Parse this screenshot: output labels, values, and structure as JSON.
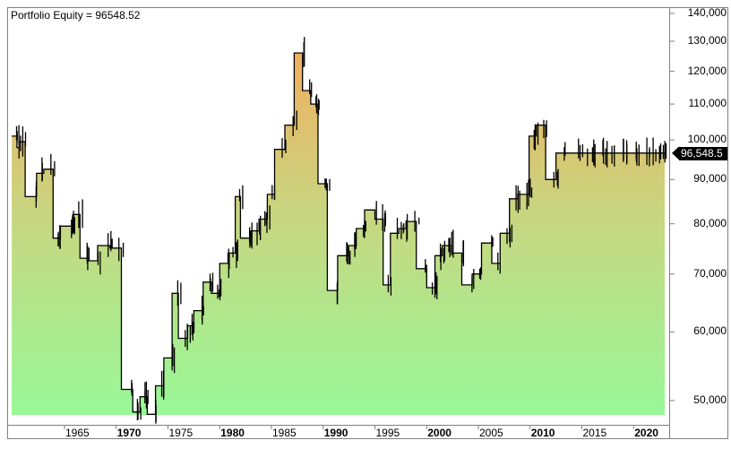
{
  "header": {
    "title": "Portfolio Equity = 96548.52"
  },
  "last_value_badge": "96,548.5",
  "y_axis": {
    "scale": "log",
    "ticks": [
      {
        "label": "140,000",
        "value": 140000
      },
      {
        "label": "130,000",
        "value": 130000
      },
      {
        "label": "120,000",
        "value": 120000
      },
      {
        "label": "110,000",
        "value": 110000
      },
      {
        "label": "100,000",
        "value": 100000
      },
      {
        "label": "90,000",
        "value": 90000
      },
      {
        "label": "80,000",
        "value": 80000
      },
      {
        "label": "70,000",
        "value": 70000
      },
      {
        "label": "60,000",
        "value": 60000
      },
      {
        "label": "50,000",
        "value": 50000
      }
    ]
  },
  "x_axis": {
    "ticks": [
      {
        "label": "1965",
        "year": 1965,
        "bold": false
      },
      {
        "label": "1970",
        "year": 1970,
        "bold": true
      },
      {
        "label": "1975",
        "year": 1975,
        "bold": false
      },
      {
        "label": "1980",
        "year": 1980,
        "bold": true
      },
      {
        "label": "1985",
        "year": 1985,
        "bold": false
      },
      {
        "label": "1990",
        "year": 1990,
        "bold": true
      },
      {
        "label": "1995",
        "year": 1995,
        "bold": false
      },
      {
        "label": "2000",
        "year": 2000,
        "bold": true
      },
      {
        "label": "2005",
        "year": 2005,
        "bold": false
      },
      {
        "label": "2010",
        "year": 2010,
        "bold": true
      },
      {
        "label": "2015",
        "year": 2015,
        "bold": false
      },
      {
        "label": "2020",
        "year": 2020,
        "bold": true
      }
    ]
  },
  "colors": {
    "fill_top": "#f0b060",
    "fill_bottom": "#98f898",
    "line": "#000000",
    "border": "#808080",
    "badge_bg": "#000000",
    "badge_text": "#ffffff"
  },
  "chart_data": {
    "type": "area",
    "title": "Portfolio Equity = 96548.52",
    "xlabel": "",
    "ylabel": "",
    "yscale": "log",
    "ylim": [
      48000,
      142000
    ],
    "xlim": [
      1959.9,
      2023.2
    ],
    "grid": false,
    "legend": "none",
    "last_value": 96548.52,
    "x": [
      1959.9,
      1960.4,
      1960.6,
      1961.2,
      1962.3,
      1963.0,
      1963.9,
      1964.6,
      1965.8,
      1966.5,
      1967.3,
      1968.2,
      1969.4,
      1970.5,
      1971.6,
      1972.3,
      1973.0,
      1973.8,
      1974.6,
      1975.4,
      1976.0,
      1976.9,
      1977.5,
      1978.4,
      1979.2,
      1980.0,
      1980.8,
      1981.5,
      1982.0,
      1983.0,
      1983.8,
      1984.6,
      1985.3,
      1986.3,
      1987.2,
      1988.0,
      1988.8,
      1989.5,
      1990.4,
      1991.4,
      1992.4,
      1993.2,
      1994.0,
      1995.0,
      1995.8,
      1996.5,
      1997.3,
      1998.0,
      1999.0,
      2000.0,
      2000.8,
      2001.5,
      2002.4,
      2003.4,
      2004.4,
      2005.3,
      2006.3,
      2007.1,
      2008.0,
      2008.8,
      2009.9,
      2010.6,
      2011.5,
      2012.5,
      2013.5,
      2014.6,
      2015.3,
      2016.2,
      2017.2,
      2018.1,
      2019.2,
      2020.3,
      2021.3,
      2022.0,
      2022.6,
      2023.0
    ],
    "values": [
      101000,
      98000,
      99500,
      86000,
      91500,
      92500,
      77000,
      79500,
      82000,
      73000,
      72500,
      75500,
      75000,
      51500,
      48500,
      50500,
      48200,
      52000,
      56000,
      66500,
      59000,
      61000,
      63500,
      68500,
      66500,
      72000,
      74000,
      86000,
      77000,
      78500,
      81000,
      86500,
      97500,
      104000,
      126000,
      114000,
      110000,
      89000,
      67000,
      73500,
      75500,
      79000,
      83000,
      81000,
      68000,
      78000,
      79000,
      80500,
      71000,
      67500,
      73500,
      75500,
      74000,
      68000,
      70000,
      76000,
      72000,
      78000,
      85500,
      86500,
      101000,
      104000,
      90000,
      96548.52,
      96548.52,
      96548.52,
      96548.52,
      96548.52,
      96548.52,
      96548.52,
      96548.52,
      96548.52,
      96548.52,
      96548.52,
      96548.52,
      96548.52
    ]
  }
}
